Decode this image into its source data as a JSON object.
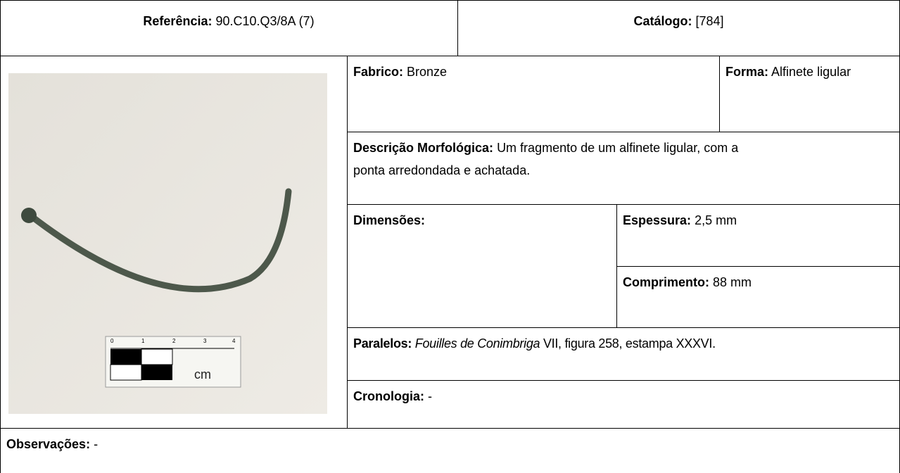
{
  "header": {
    "reference": {
      "label": "Referência:",
      "value": "90.C10.Q3/8A (7)"
    },
    "catalog": {
      "label": "Catálogo:",
      "value": "[784]"
    }
  },
  "fields": {
    "fabric": {
      "label": "Fabrico:",
      "value": "Bronze"
    },
    "form": {
      "label": "Forma:",
      "value": "Alfinete ligular"
    },
    "description": {
      "label": "Descrição Morfológica:",
      "value": "Um fragmento de um alfinete ligular, com a ponta arredondada e achatada."
    },
    "dimensions": {
      "label": "Dimensões:"
    },
    "thickness": {
      "label": "Espessura:",
      "value": "2,5 mm"
    },
    "length": {
      "label": "Comprimento:",
      "value": "88 mm"
    },
    "parallels": {
      "label": "Paralelos:",
      "title": "Fouilles de Conimbriga",
      "value": "VII, figura 258, estampa XXXVI."
    },
    "chronology": {
      "label": "Cronologia:",
      "value": "-"
    },
    "observations": {
      "label": "Observações:",
      "value": "-"
    }
  },
  "photo": {
    "scale_unit": "cm",
    "scale_ticks": [
      "0",
      "1",
      "2",
      "3",
      "4"
    ]
  }
}
